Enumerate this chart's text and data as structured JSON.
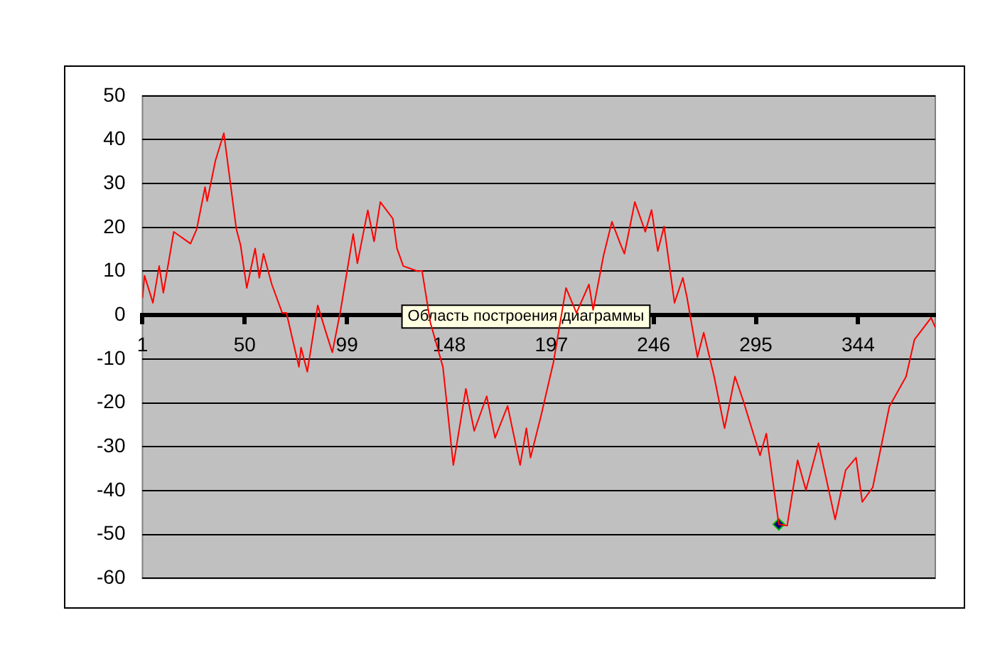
{
  "chart_data": {
    "type": "line",
    "xlim": [
      1,
      381
    ],
    "xticks": [
      1,
      50,
      99,
      148,
      197,
      246,
      295,
      344
    ],
    "ylim": [
      -60,
      50
    ],
    "yticks": [
      -60,
      -50,
      -40,
      -30,
      -20,
      -10,
      0,
      10,
      20,
      30,
      40,
      50
    ],
    "grid": "y",
    "marker": "none",
    "line_style": "solid",
    "annotations": [
      "Область построения диаграммы"
    ],
    "series": [
      {
        "color": "#ff0000",
        "x": [
          1,
          2,
          6,
          9,
          11,
          16,
          24,
          27,
          31,
          32,
          36,
          40,
          46,
          48,
          51,
          55,
          57,
          59,
          63,
          68,
          70,
          76,
          77,
          80,
          85,
          89,
          92,
          96,
          102,
          104,
          109,
          112,
          115,
          121,
          123,
          126,
          133,
          135,
          139,
          145,
          150,
          156,
          160,
          166,
          170,
          176,
          182,
          185,
          187,
          192,
          198,
          204,
          209,
          215,
          217,
          222,
          226,
          230,
          232,
          237,
          242,
          245,
          248,
          251,
          256,
          260,
          262,
          267,
          270,
          275,
          280,
          285,
          289,
          297,
          300,
          306,
          310,
          315,
          319,
          325,
          333,
          338,
          343,
          346,
          351,
          359,
          367,
          371,
          379,
          381
        ],
        "values": [
          3.9,
          9,
          2.8,
          11.2,
          5.1,
          19,
          16.3,
          19.6,
          29.2,
          26,
          35.3,
          41.5,
          19.6,
          16,
          6.2,
          15.2,
          8.5,
          14,
          7,
          0.5,
          0.5,
          -11.8,
          -7.4,
          -12.9,
          2.2,
          -4,
          -8.5,
          1.2,
          18.5,
          11.8,
          23.9,
          16.8,
          25.8,
          22,
          15.2,
          11.2,
          10,
          10.1,
          -1.7,
          -11.8,
          -34.2,
          -16.8,
          -26.4,
          -18.5,
          -28,
          -20.7,
          -34.2,
          -25.8,
          -32.5,
          -23,
          -10.7,
          6.2,
          0.5,
          7,
          1.2,
          13.6,
          21.3,
          16.3,
          14,
          25.8,
          19,
          24,
          14.6,
          20.2,
          2.8,
          8.5,
          4,
          -9.6,
          -4,
          -14,
          -25.8,
          -14,
          -19.6,
          -32,
          -27,
          -47.7,
          -48,
          -33.1,
          -39.9,
          -29.2,
          -46.6,
          -35.4,
          -32.5,
          -42.6,
          -39.3,
          -20.8,
          -14,
          -5.6,
          -0.6,
          -2.8
        ]
      },
      {
        "type": "scatter",
        "color": "#000080",
        "marker": "diamond",
        "x": [
          306
        ],
        "values": [
          -47.7
        ]
      }
    ]
  }
}
